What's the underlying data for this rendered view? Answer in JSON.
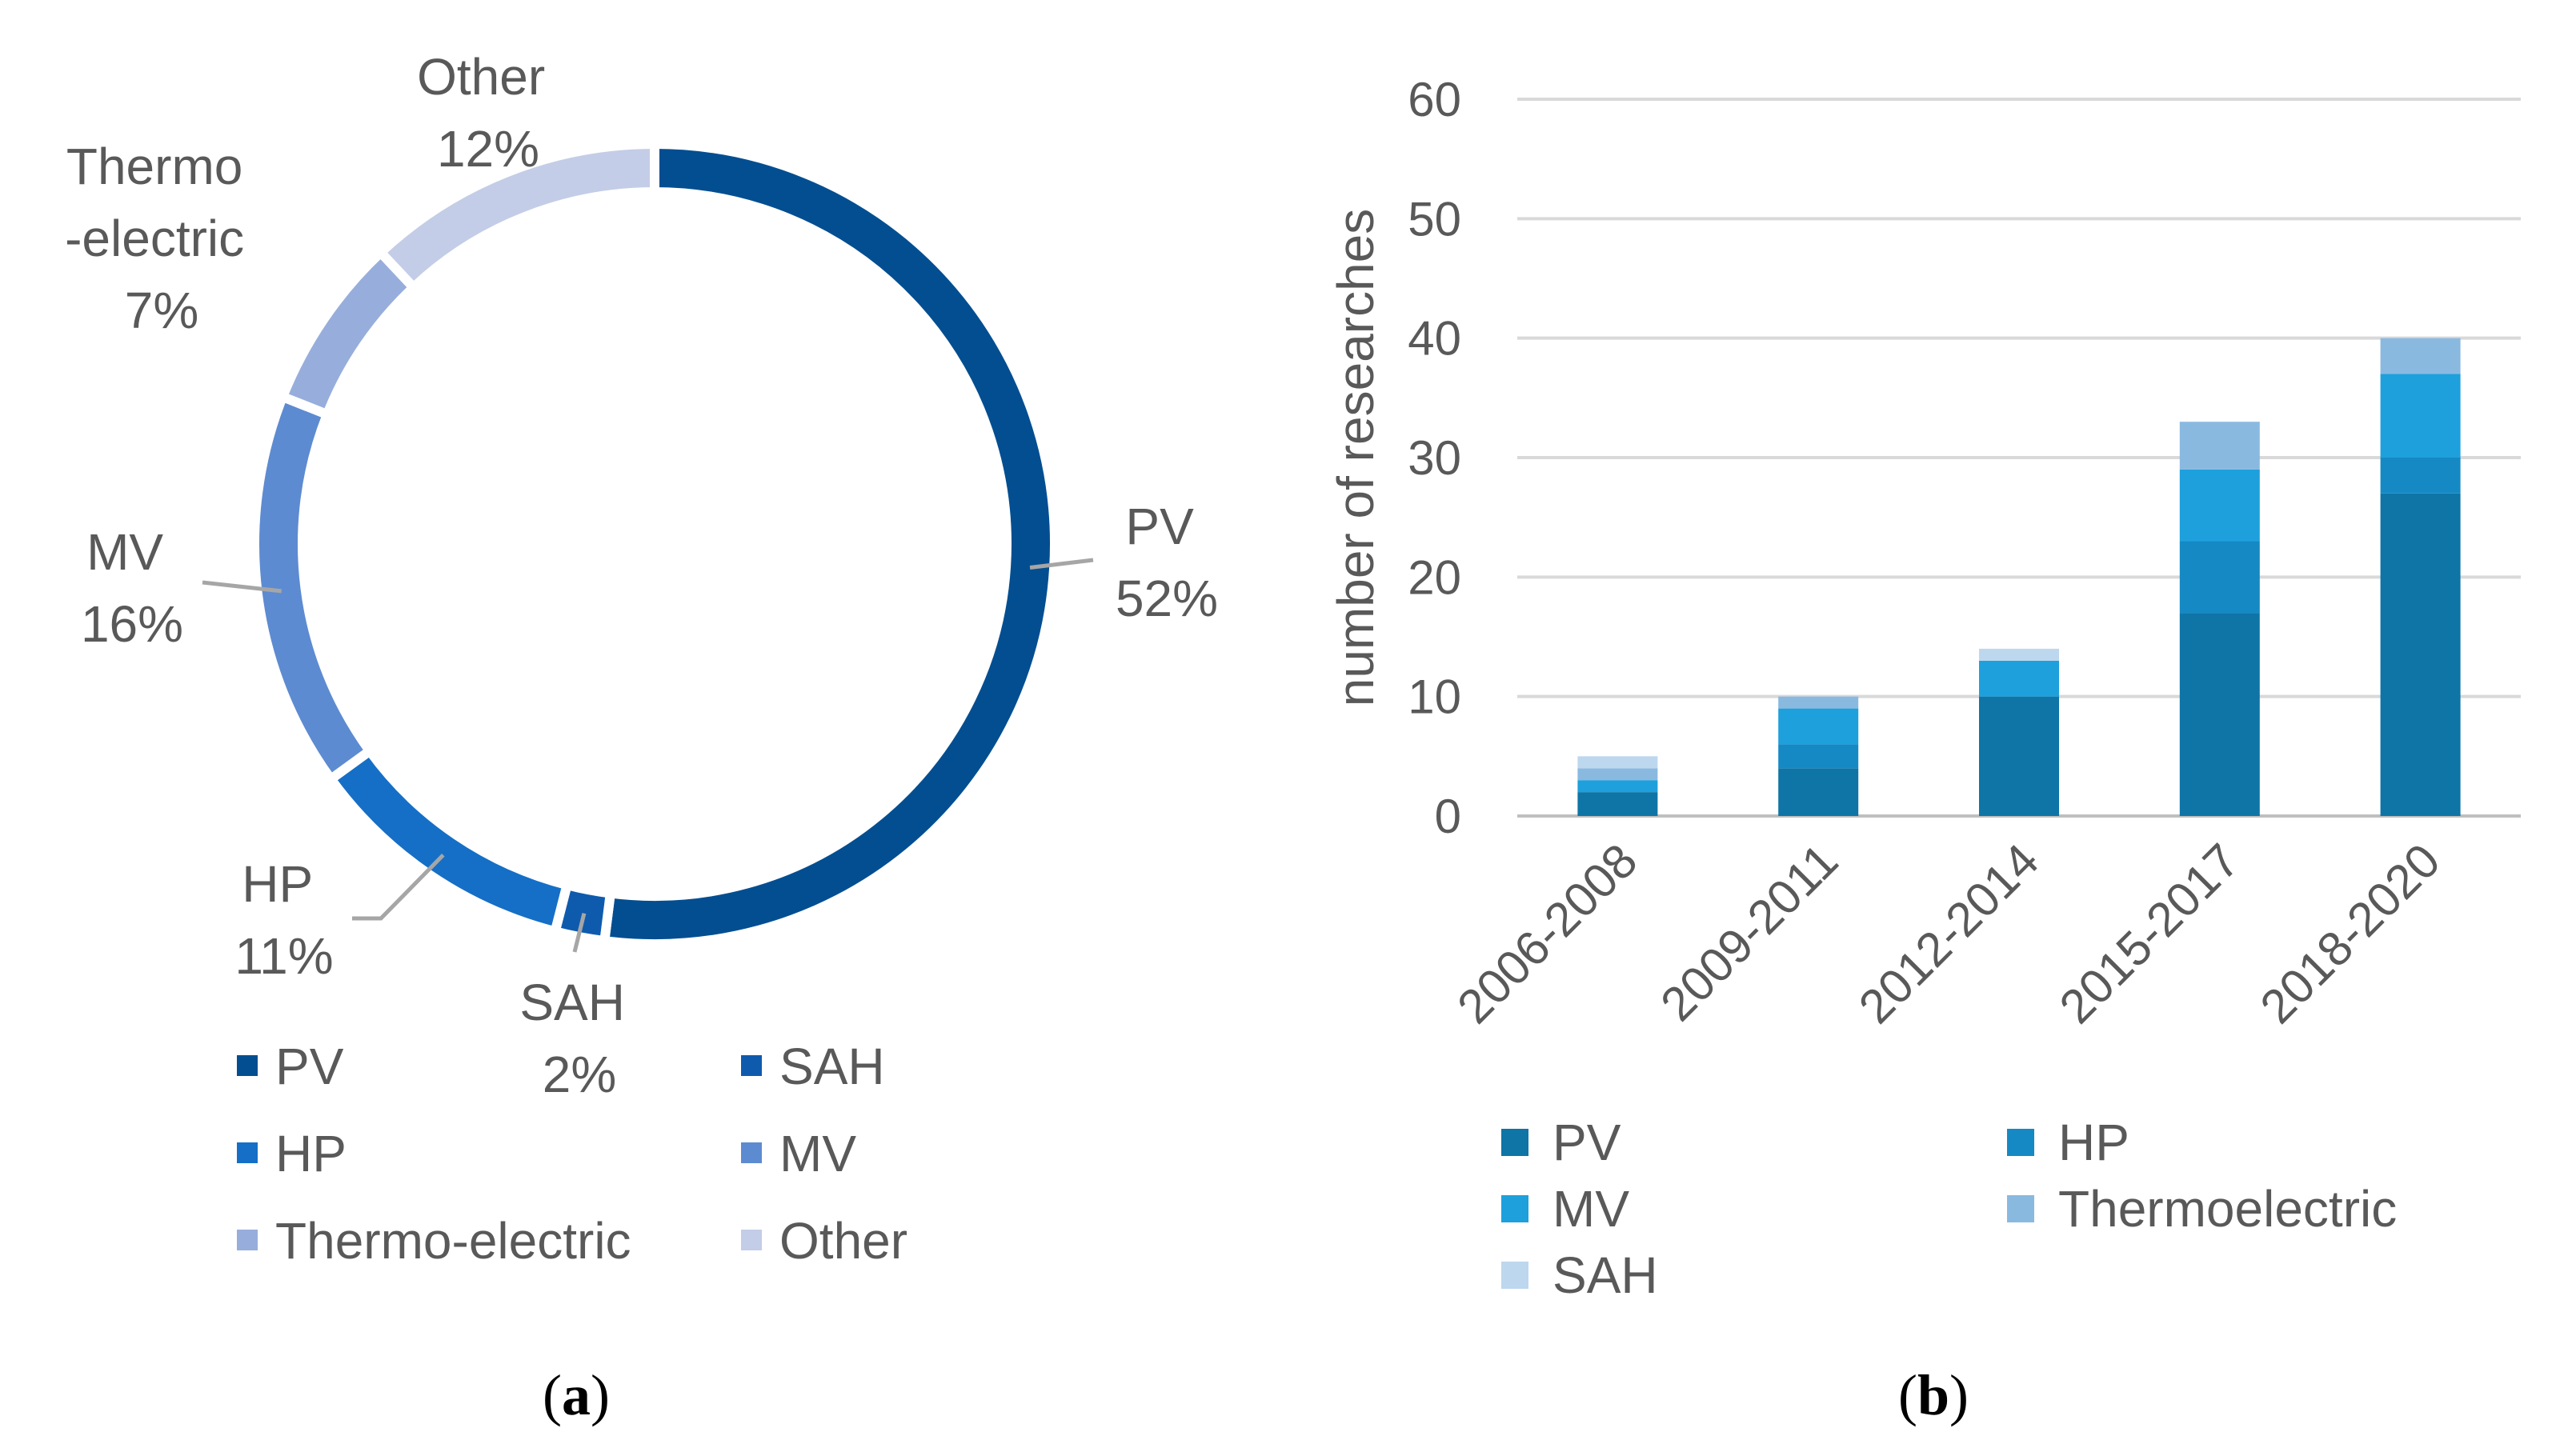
{
  "chart_data": [
    {
      "type": "pie",
      "variant": "donut",
      "caption_paren_open": "(",
      "caption_letter": "a",
      "caption_paren_close": ")",
      "slices": [
        {
          "name": "PV",
          "value": 52,
          "label_lines": [
            "PV",
            "52%"
          ],
          "color": "#034E91"
        },
        {
          "name": "SAH",
          "value": 2,
          "label_lines": [
            "SAH",
            "2%"
          ],
          "color": "#0E5BAE"
        },
        {
          "name": "HP",
          "value": 11,
          "label_lines": [
            "HP",
            "11%"
          ],
          "color": "#156FC6"
        },
        {
          "name": "MV",
          "value": 16,
          "label_lines": [
            "MV",
            "16%"
          ],
          "color": "#5D8BD1"
        },
        {
          "name": "Thermo-electric",
          "value": 7,
          "label_lines": [
            "Thermo",
            "-electric",
            "7%"
          ],
          "color": "#97AEDC"
        },
        {
          "name": "Other",
          "value": 12,
          "label_lines": [
            "Other",
            "12%"
          ],
          "color": "#C3CDE7"
        }
      ],
      "legend": [
        "PV",
        "SAH",
        "HP",
        "MV",
        "Thermo-electric",
        "Other"
      ]
    },
    {
      "type": "bar",
      "stacked": true,
      "caption_paren_open": "(",
      "caption_letter": "b",
      "caption_paren_close": ")",
      "categories": [
        "2006-2008",
        "2009-2011",
        "2012-2014",
        "2015-2017",
        "2018-2020"
      ],
      "series": [
        {
          "name": "PV",
          "values": [
            2,
            4,
            10,
            17,
            27
          ],
          "color": "#0E75A6"
        },
        {
          "name": "HP",
          "values": [
            0,
            2,
            0,
            6,
            3
          ],
          "color": "#1589C4"
        },
        {
          "name": "MV",
          "values": [
            1,
            3,
            3,
            6,
            7
          ],
          "color": "#1EA0DC"
        },
        {
          "name": "Thermoelectric",
          "values": [
            1,
            1,
            0,
            4,
            3
          ],
          "color": "#8AB9E0"
        },
        {
          "name": "SAH",
          "values": [
            1,
            0,
            1,
            0,
            0
          ],
          "color": "#BDD7EE"
        }
      ],
      "ylabel": "number of researches",
      "xlabel": "",
      "ylim": [
        0,
        60
      ],
      "yticks": [
        0,
        10,
        20,
        30,
        40,
        50,
        60
      ],
      "grid": true,
      "legend": [
        "PV",
        "HP",
        "MV",
        "Thermoelectric",
        "SAH"
      ]
    }
  ]
}
